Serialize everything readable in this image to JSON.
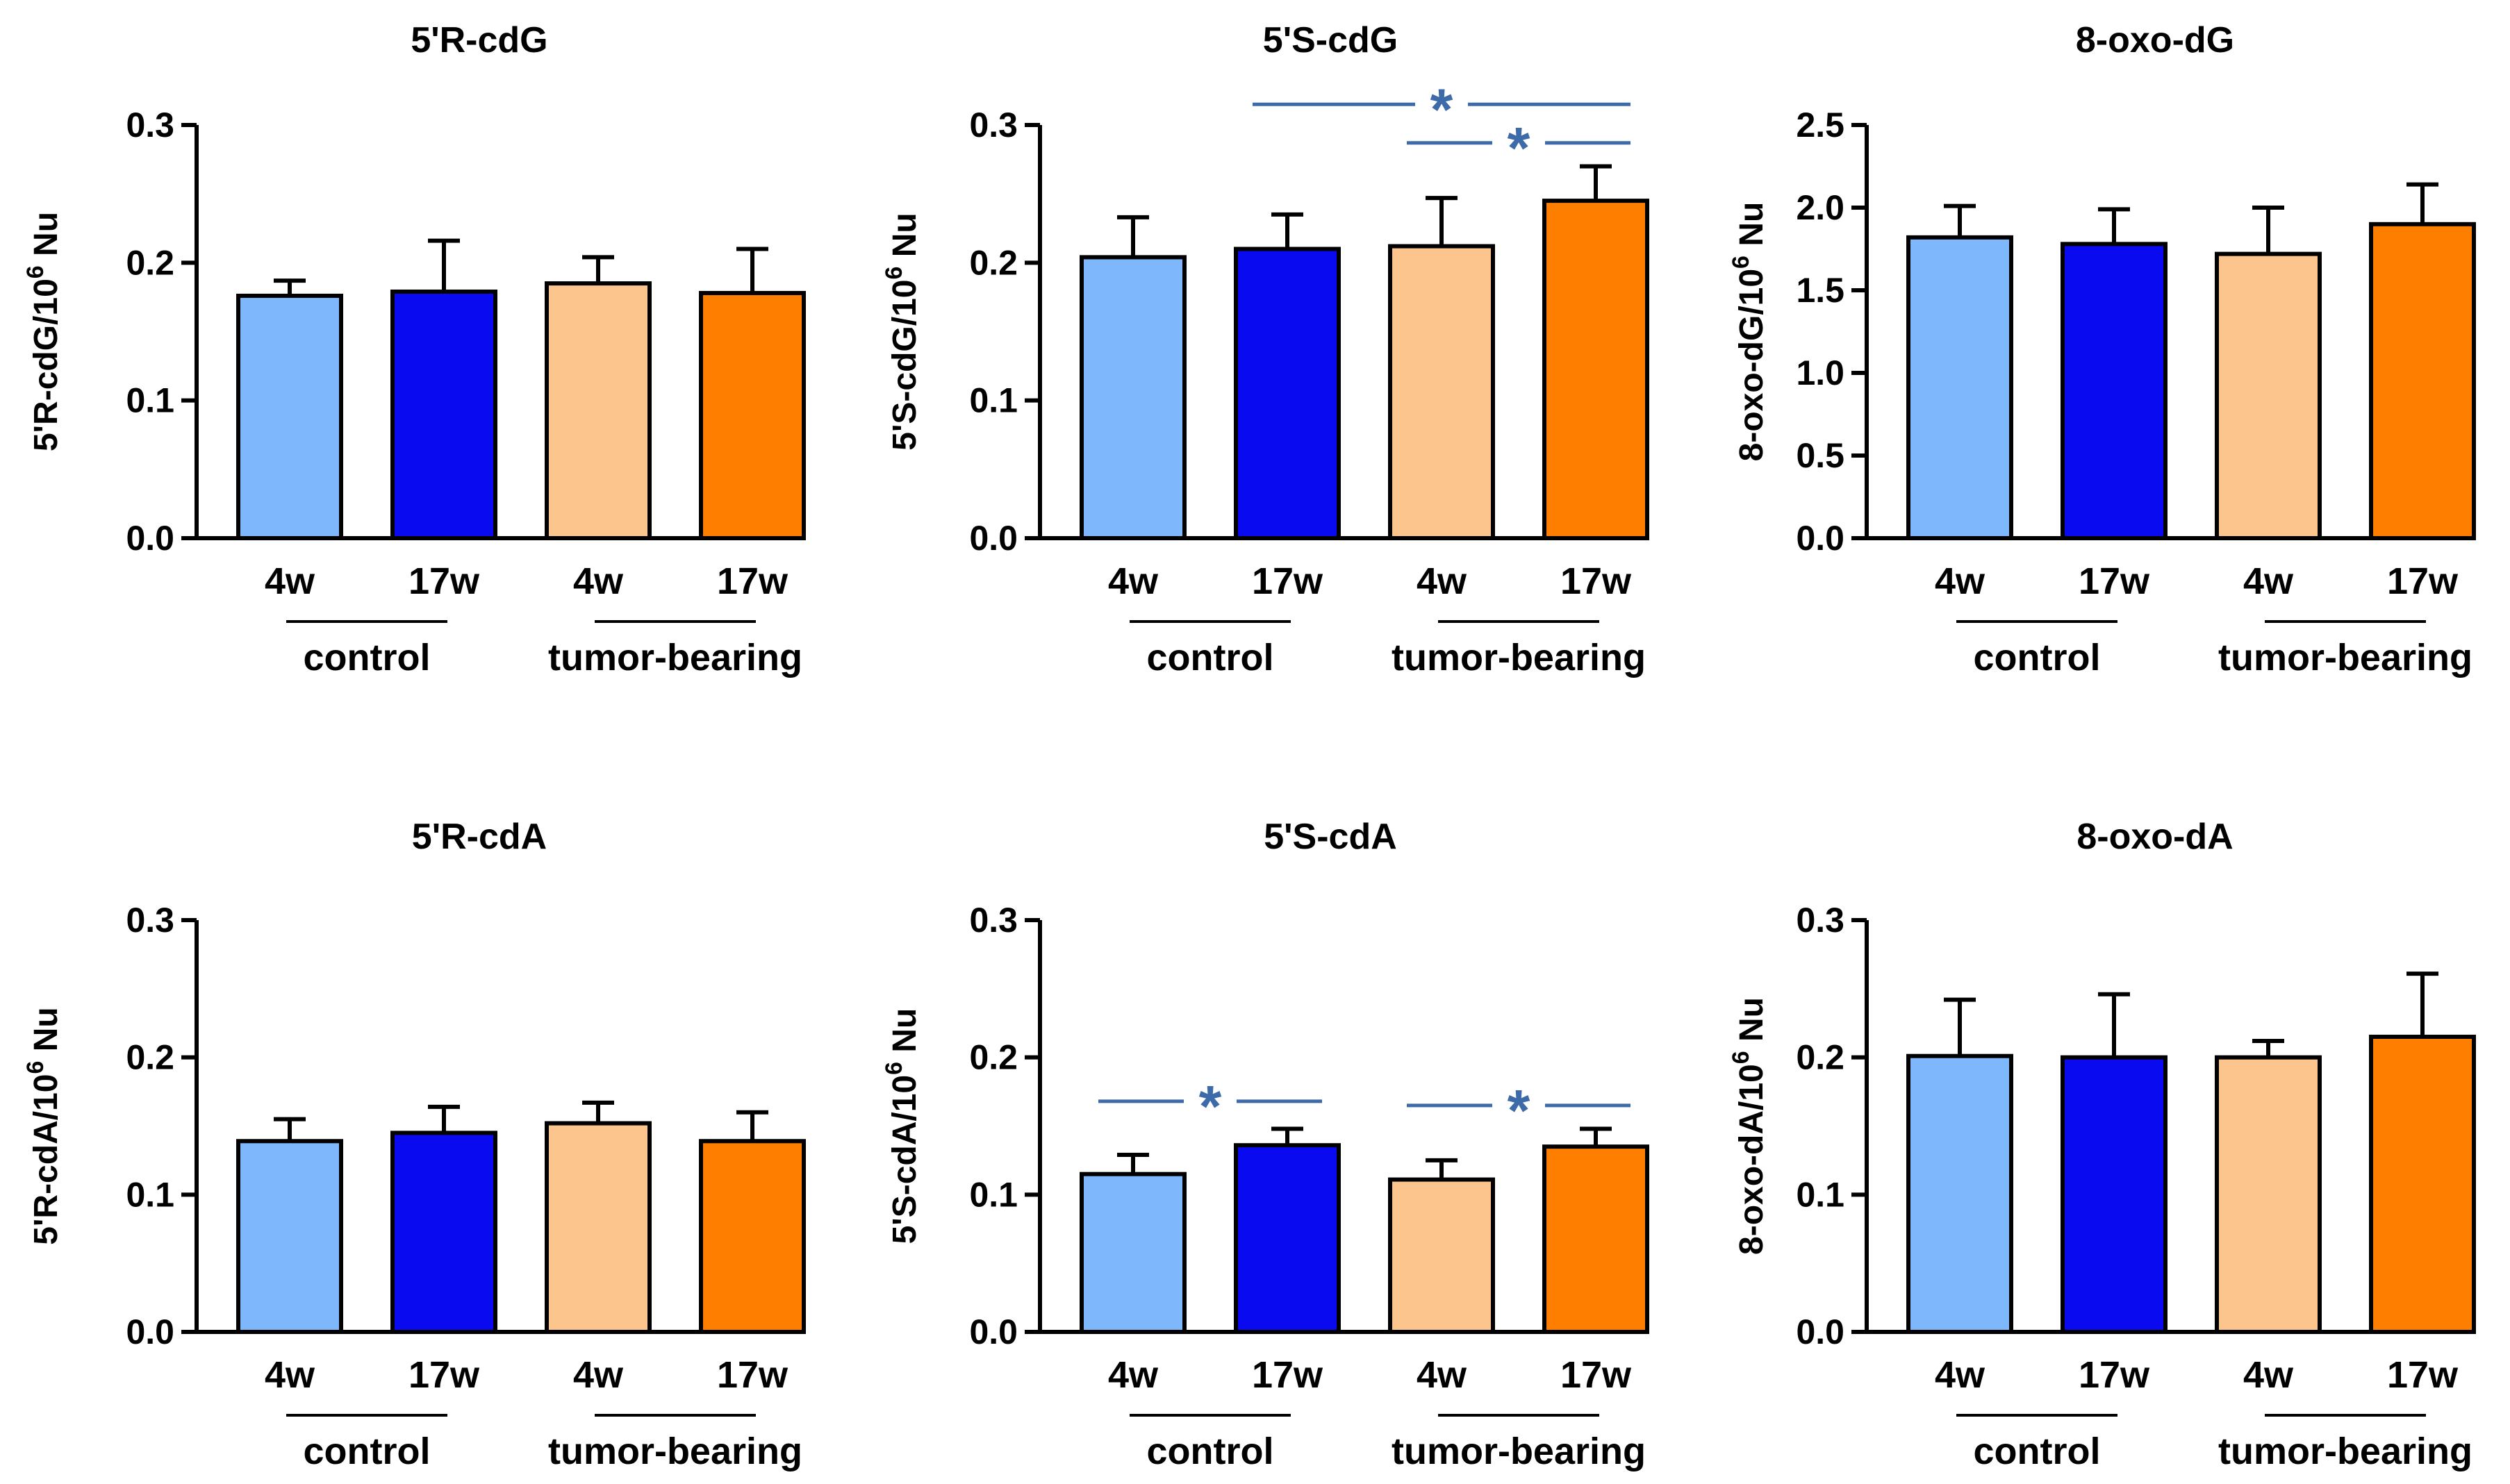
{
  "figure": {
    "colors": {
      "control_4w": "#7fb7fd",
      "control_17w": "#0a0af0",
      "tumor_4w": "#fcc58d",
      "tumor_17w": "#fe7f00",
      "significance": "#3d6aa8",
      "axis": "#000000"
    },
    "group_labels": [
      "control",
      "tumor-bearing"
    ],
    "x_labels": [
      "4w",
      "17w",
      "4w",
      "17w"
    ]
  },
  "chart_data": [
    {
      "type": "bar",
      "title": "5'R-cdG",
      "ylabel_main": "5'R-cdG/10",
      "ylabel_sup": "6",
      "ylabel_tail": " Nu",
      "categories": [
        "4w",
        "17w",
        "4w",
        "17w"
      ],
      "groups": [
        "control",
        "tumor-bearing"
      ],
      "values": [
        0.176,
        0.179,
        0.185,
        0.178
      ],
      "errors": [
        0.011,
        0.037,
        0.019,
        0.032
      ],
      "ylim": [
        0,
        0.3
      ],
      "yticks": [
        "0.0",
        "0.1",
        "0.2",
        "0.3"
      ],
      "significance": []
    },
    {
      "type": "bar",
      "title": "5'S-cdG",
      "ylabel_main": "5'S-cdG/10",
      "ylabel_sup": "6",
      "ylabel_tail": " Nu",
      "categories": [
        "4w",
        "17w",
        "4w",
        "17w"
      ],
      "groups": [
        "control",
        "tumor-bearing"
      ],
      "values": [
        0.204,
        0.21,
        0.212,
        0.245
      ],
      "errors": [
        0.029,
        0.025,
        0.035,
        0.025
      ],
      "ylim": [
        0,
        0.3
      ],
      "yticks": [
        "0.0",
        "0.1",
        "0.2",
        "0.3"
      ],
      "significance": [
        {
          "from": 1,
          "to": 3,
          "label": "*",
          "at_value": 0.315
        },
        {
          "from": 2,
          "to": 3,
          "label": "*",
          "at_value": 0.287
        }
      ]
    },
    {
      "type": "bar",
      "title": "8-oxo-dG",
      "ylabel_main": "8-oxo-dG/10",
      "ylabel_sup": "6",
      "ylabel_tail": " Nu",
      "categories": [
        "4w",
        "17w",
        "4w",
        "17w"
      ],
      "groups": [
        "control",
        "tumor-bearing"
      ],
      "values": [
        1.82,
        1.78,
        1.72,
        1.9
      ],
      "errors": [
        0.19,
        0.21,
        0.28,
        0.24
      ],
      "ylim": [
        0,
        2.5
      ],
      "yticks": [
        "0.0",
        "0.5",
        "1.0",
        "1.5",
        "2.0",
        "2.5"
      ],
      "significance": []
    },
    {
      "type": "bar",
      "title": "5'R-cdA",
      "ylabel_main": "5'R-cdA/10",
      "ylabel_sup": "6",
      "ylabel_tail": " Nu",
      "categories": [
        "4w",
        "17w",
        "4w",
        "17w"
      ],
      "groups": [
        "control",
        "tumor-bearing"
      ],
      "values": [
        0.139,
        0.145,
        0.152,
        0.139
      ],
      "errors": [
        0.016,
        0.019,
        0.015,
        0.021
      ],
      "ylim": [
        0,
        0.3
      ],
      "yticks": [
        "0.0",
        "0.1",
        "0.2",
        "0.3"
      ],
      "significance": []
    },
    {
      "type": "bar",
      "title": "5'S-cdA",
      "ylabel_main": "5'S-cdA/10",
      "ylabel_sup": "6",
      "ylabel_tail": " Nu",
      "categories": [
        "4w",
        "17w",
        "4w",
        "17w"
      ],
      "groups": [
        "control",
        "tumor-bearing"
      ],
      "values": [
        0.115,
        0.136,
        0.111,
        0.135
      ],
      "errors": [
        0.014,
        0.012,
        0.014,
        0.013
      ],
      "ylim": [
        0,
        0.3
      ],
      "yticks": [
        "0.0",
        "0.1",
        "0.2",
        "0.3"
      ],
      "significance": [
        {
          "from": 0,
          "to": 1,
          "label": "*",
          "at_value": 0.168
        },
        {
          "from": 2,
          "to": 3,
          "label": "*",
          "at_value": 0.165
        }
      ]
    },
    {
      "type": "bar",
      "title": "8-oxo-dA",
      "ylabel_main": "8-oxo-dA/10",
      "ylabel_sup": "6",
      "ylabel_tail": " Nu",
      "categories": [
        "4w",
        "17w",
        "4w",
        "17w"
      ],
      "groups": [
        "control",
        "tumor-bearing"
      ],
      "values": [
        0.201,
        0.2,
        0.2,
        0.215
      ],
      "errors": [
        0.041,
        0.046,
        0.012,
        0.046
      ],
      "ylim": [
        0,
        0.3
      ],
      "yticks": [
        "0.0",
        "0.1",
        "0.2",
        "0.3"
      ],
      "significance": []
    }
  ]
}
